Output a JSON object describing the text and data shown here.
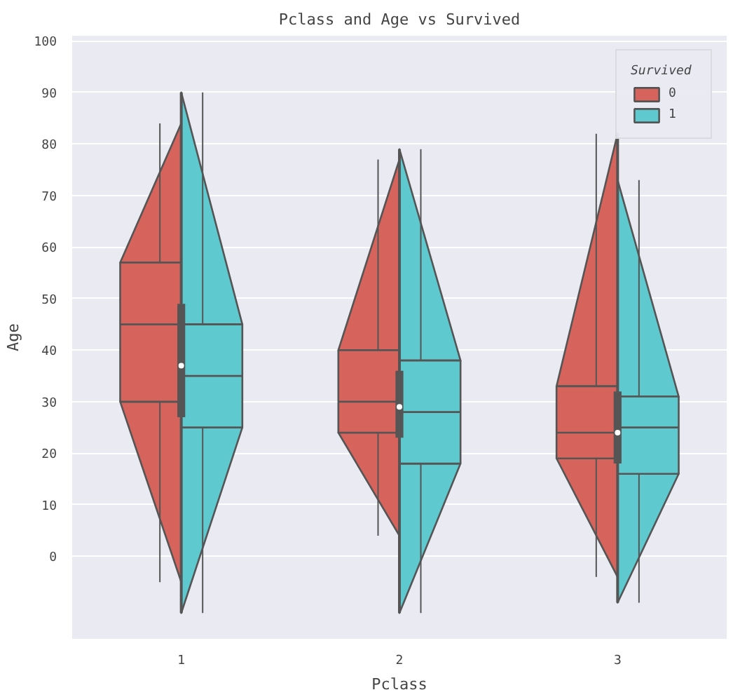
{
  "chart_data": {
    "type": "box",
    "title": "Pclass and Age vs Survived",
    "xlabel": "Pclass",
    "ylabel": "Age",
    "legend_title": "Survived",
    "categories": [
      "1",
      "2",
      "3"
    ],
    "ylim": [
      -16,
      101
    ],
    "yticks": [
      0,
      10,
      20,
      30,
      40,
      50,
      60,
      70,
      80,
      90,
      100
    ],
    "grid": "y",
    "legend": "top right",
    "boxes": [
      {
        "low": -11,
        "q1": 27,
        "median": 37,
        "q3": 49,
        "high": 90
      },
      {
        "low": -11,
        "q1": 23,
        "median": 29,
        "q3": 36,
        "high": 79
      },
      {
        "low": -9,
        "q1": 18,
        "median": 24,
        "q3": 32,
        "high": 82
      }
    ],
    "series": [
      {
        "name": "0",
        "color": "#d6645c",
        "boxes": [
          {
            "low": -5,
            "q1": 30,
            "median": 45,
            "q3": 57,
            "high": 84
          },
          {
            "low": 4,
            "q1": 24,
            "median": 30,
            "q3": 40,
            "high": 77
          },
          {
            "low": -4,
            "q1": 19,
            "median": 24,
            "q3": 33,
            "high": 82
          }
        ]
      },
      {
        "name": "1",
        "color": "#5ec9cf",
        "boxes": [
          {
            "low": -11,
            "q1": 25,
            "median": 35,
            "q3": 45,
            "high": 90
          },
          {
            "low": -11,
            "q1": 18,
            "median": 28,
            "q3": 38,
            "high": 79
          },
          {
            "low": -9,
            "q1": 16,
            "median": 25,
            "q3": 31,
            "high": 73
          }
        ]
      }
    ]
  }
}
